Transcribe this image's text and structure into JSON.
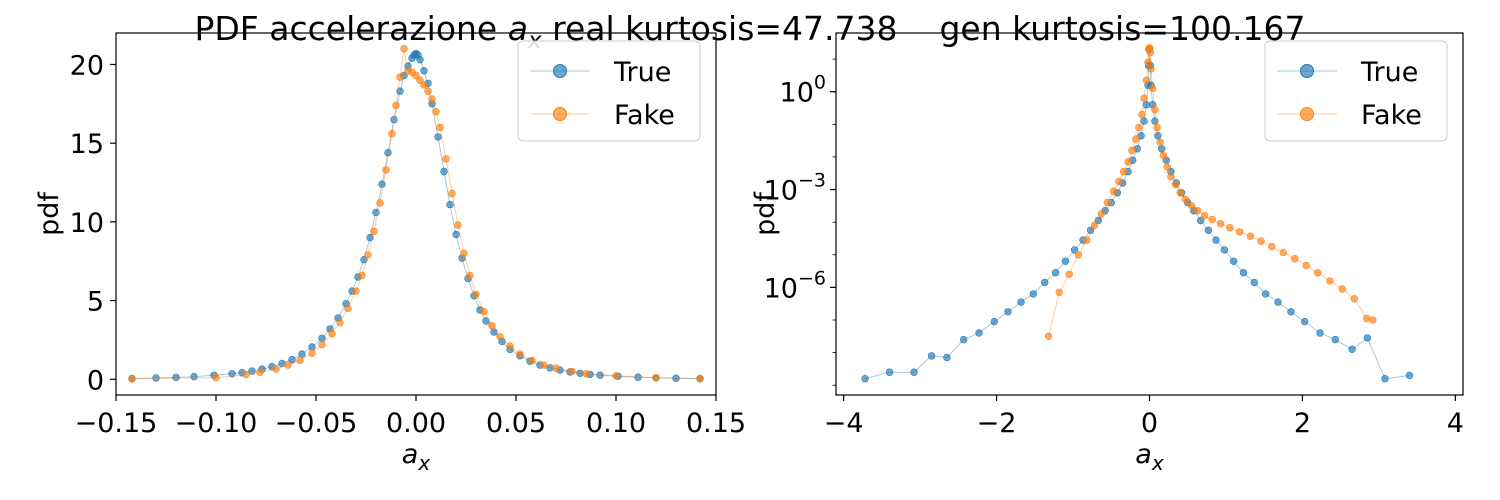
{
  "figure": {
    "title_main": "PDF accelerazione",
    "title_var_base": "a",
    "title_var_sub": "x",
    "title_real": "real kurtosis=47.738",
    "title_gen": "gen kurtosis=100.167"
  },
  "chart_data": [
    {
      "type": "line",
      "scale": "linear",
      "xlabel_base": "a",
      "xlabel_sub": "x",
      "ylabel": "pdf",
      "xlim": [
        -0.15,
        0.15
      ],
      "ylim": [
        -1.0,
        22.0
      ],
      "xticks": [
        -0.15,
        -0.1,
        -0.05,
        0.0,
        0.05,
        0.1,
        0.15
      ],
      "xtick_labels": [
        "−0.15",
        "−0.10",
        "−0.05",
        "0.00",
        "0.05",
        "0.10",
        "0.15"
      ],
      "yticks": [
        0,
        5,
        10,
        15,
        20
      ],
      "ytick_labels": [
        "0",
        "5",
        "10",
        "15",
        "20"
      ],
      "legend_position": "top-right",
      "grid": false,
      "series": [
        {
          "name": "True",
          "color": "#1f77b4",
          "x": [
            -0.142,
            -0.13,
            -0.12,
            -0.111,
            -0.101,
            -0.092,
            -0.087,
            -0.082,
            -0.077,
            -0.072,
            -0.067,
            -0.062,
            -0.057,
            -0.052,
            -0.047,
            -0.043,
            -0.039,
            -0.035,
            -0.032,
            -0.029,
            -0.026,
            -0.023,
            -0.02,
            -0.017,
            -0.014,
            -0.011,
            -0.008,
            -0.006,
            -0.004,
            -0.002,
            -0.001,
            0.0,
            0.001,
            0.002,
            0.004,
            0.006,
            0.008,
            0.011,
            0.014,
            0.017,
            0.02,
            0.023,
            0.026,
            0.029,
            0.032,
            0.035,
            0.039,
            0.043,
            0.047,
            0.052,
            0.057,
            0.062,
            0.067,
            0.072,
            0.077,
            0.082,
            0.087,
            0.092,
            0.101,
            0.111,
            0.12,
            0.13,
            0.142
          ],
          "y": [
            0.05,
            0.08,
            0.12,
            0.17,
            0.25,
            0.35,
            0.42,
            0.52,
            0.64,
            0.8,
            1.0,
            1.25,
            1.6,
            2.05,
            2.6,
            3.2,
            3.9,
            4.8,
            5.6,
            6.5,
            7.6,
            9.0,
            10.6,
            12.4,
            14.4,
            16.5,
            18.3,
            19.3,
            19.9,
            20.4,
            20.6,
            20.7,
            20.6,
            20.3,
            19.6,
            18.8,
            17.5,
            15.4,
            13.2,
            11.1,
            9.2,
            7.7,
            6.4,
            5.3,
            4.4,
            3.7,
            3.0,
            2.4,
            1.9,
            1.5,
            1.15,
            0.9,
            0.72,
            0.58,
            0.47,
            0.38,
            0.31,
            0.26,
            0.19,
            0.13,
            0.09,
            0.06,
            0.03
          ]
        },
        {
          "name": "Fake",
          "color": "#ff7f0e",
          "x": [
            -0.142,
            -0.1,
            -0.085,
            -0.078,
            -0.07,
            -0.064,
            -0.058,
            -0.052,
            -0.047,
            -0.042,
            -0.038,
            -0.034,
            -0.03,
            -0.027,
            -0.024,
            -0.021,
            -0.018,
            -0.015,
            -0.012,
            -0.01,
            -0.008,
            -0.006,
            -0.004,
            -0.002,
            0.0,
            0.002,
            0.004,
            0.006,
            0.008,
            0.01,
            0.012,
            0.015,
            0.018,
            0.021,
            0.024,
            0.027,
            0.03,
            0.034,
            0.038,
            0.042,
            0.047,
            0.052,
            0.058,
            0.064,
            0.07,
            0.078,
            0.085,
            0.1,
            0.12,
            0.142
          ],
          "y": [
            0.02,
            0.1,
            0.3,
            0.45,
            0.65,
            0.9,
            1.2,
            1.65,
            2.2,
            2.9,
            3.6,
            4.5,
            5.6,
            6.6,
            7.9,
            9.4,
            11.2,
            13.3,
            15.6,
            17.4,
            19.2,
            21.0,
            19.6,
            19.5,
            19.3,
            19.0,
            18.7,
            18.3,
            17.8,
            17.0,
            16.0,
            14.0,
            11.8,
            9.8,
            8.0,
            6.6,
            5.4,
            4.3,
            3.4,
            2.7,
            2.1,
            1.6,
            1.2,
            0.9,
            0.7,
            0.5,
            0.35,
            0.22,
            0.1,
            0.05
          ]
        }
      ]
    },
    {
      "type": "line",
      "scale": "log",
      "xlabel_base": "a",
      "xlabel_sub": "x",
      "ylabel": "pdf",
      "xlim": [
        -4.1,
        4.1
      ],
      "ylim_log10": [
        -9.3,
        1.8
      ],
      "xticks": [
        -4,
        -2,
        0,
        2,
        4
      ],
      "xtick_labels": [
        "−4",
        "−2",
        "0",
        "2",
        "4"
      ],
      "yticks_log10": [
        0,
        -3,
        -6
      ],
      "ytick_base": "10",
      "ytick_exponents": [
        "0",
        "−3",
        "−6"
      ],
      "legend_position": "top-right",
      "grid": false,
      "series": [
        {
          "name": "True",
          "color": "#1f77b4",
          "x": [
            -3.72,
            -3.4,
            -3.08,
            -2.85,
            -2.65,
            -2.43,
            -2.23,
            -2.03,
            -1.85,
            -1.68,
            -1.52,
            -1.37,
            -1.23,
            -1.1,
            -0.98,
            -0.87,
            -0.77,
            -0.67,
            -0.58,
            -0.5,
            -0.42,
            -0.35,
            -0.28,
            -0.22,
            -0.16,
            -0.11,
            -0.07,
            -0.04,
            -0.02,
            -0.01,
            0.0,
            0.01,
            0.02,
            0.04,
            0.07,
            0.11,
            0.16,
            0.22,
            0.28,
            0.35,
            0.42,
            0.5,
            0.58,
            0.67,
            0.77,
            0.87,
            0.98,
            1.1,
            1.23,
            1.37,
            1.52,
            1.68,
            1.85,
            2.03,
            2.23,
            2.43,
            2.65,
            2.85,
            3.08,
            3.4
          ],
          "logy": [
            -8.8,
            -8.6,
            -8.6,
            -8.1,
            -8.15,
            -7.6,
            -7.4,
            -7.05,
            -6.75,
            -6.45,
            -6.2,
            -5.85,
            -5.55,
            -5.2,
            -4.85,
            -4.55,
            -4.25,
            -3.95,
            -3.65,
            -3.4,
            -3.1,
            -2.8,
            -2.45,
            -2.1,
            -1.75,
            -1.35,
            -0.9,
            -0.4,
            0.2,
            0.8,
            1.3,
            0.8,
            0.2,
            -0.4,
            -0.9,
            -1.35,
            -1.75,
            -2.1,
            -2.45,
            -2.8,
            -3.1,
            -3.4,
            -3.65,
            -3.95,
            -4.25,
            -4.55,
            -4.85,
            -5.2,
            -5.55,
            -5.85,
            -6.2,
            -6.45,
            -6.75,
            -7.05,
            -7.4,
            -7.6,
            -7.9,
            -7.55,
            -8.8,
            -8.7
          ]
        },
        {
          "name": "Fake",
          "color": "#ff7f0e",
          "x": [
            -1.32,
            -1.18,
            -1.05,
            -0.93,
            -0.82,
            -0.72,
            -0.63,
            -0.55,
            -0.47,
            -0.4,
            -0.34,
            -0.28,
            -0.23,
            -0.18,
            -0.14,
            -0.1,
            -0.07,
            -0.04,
            -0.02,
            -0.01,
            0.0,
            0.01,
            0.02,
            0.04,
            0.07,
            0.1,
            0.14,
            0.18,
            0.23,
            0.28,
            0.34,
            0.4,
            0.47,
            0.55,
            0.63,
            0.72,
            0.82,
            0.93,
            1.05,
            1.18,
            1.32,
            1.46,
            1.6,
            1.75,
            1.9,
            2.05,
            2.2,
            2.36,
            2.52,
            2.68,
            2.84,
            2.92
          ],
          "logy": [
            -7.5,
            -6.15,
            -5.6,
            -5.0,
            -4.55,
            -4.1,
            -3.75,
            -3.4,
            -3.05,
            -2.75,
            -2.45,
            -2.15,
            -1.8,
            -1.45,
            -1.1,
            -0.7,
            -0.2,
            0.35,
            0.9,
            1.3,
            1.35,
            1.2,
            0.7,
            0.1,
            -0.55,
            -1.1,
            -1.55,
            -1.95,
            -2.3,
            -2.6,
            -2.85,
            -3.1,
            -3.3,
            -3.5,
            -3.65,
            -3.8,
            -3.92,
            -4.05,
            -4.17,
            -4.3,
            -4.43,
            -4.58,
            -4.75,
            -4.93,
            -5.12,
            -5.33,
            -5.55,
            -5.8,
            -6.05,
            -6.35,
            -6.95,
            -7.0
          ]
        }
      ]
    }
  ]
}
